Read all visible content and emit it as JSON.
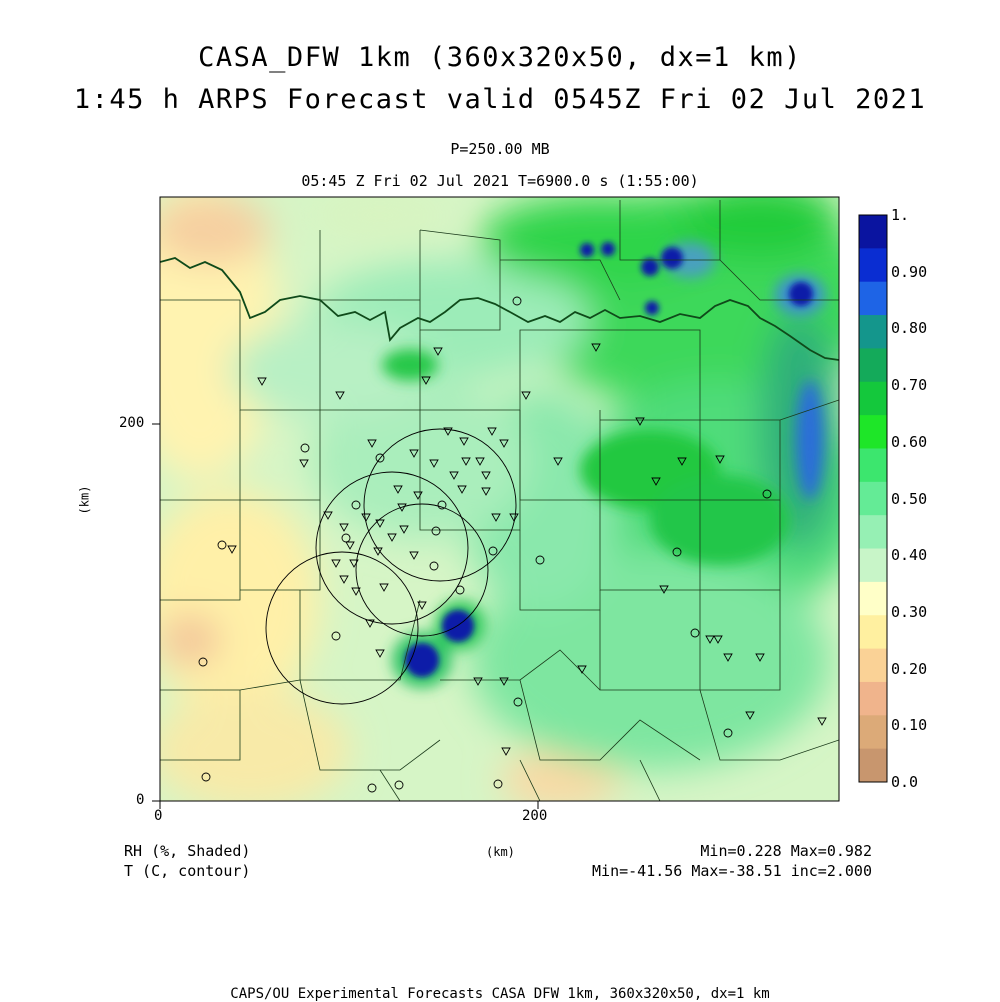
{
  "title": {
    "line1": "CASA_DFW 1km (360x320x50, dx=1 km)",
    "line2": "1:45 h ARPS Forecast valid 0545Z Fri 02 Jul 2021",
    "level": "P=250.00 MB",
    "time": "05:45 Z Fri 02 Jul 2021   T=6900.0 s (1:55:00)"
  },
  "axes": {
    "x_ticks": [
      "0",
      "200"
    ],
    "y_ticks": [
      "0",
      "200"
    ],
    "x_label": "(km)",
    "y_label": "(km)"
  },
  "fields": {
    "shaded": "RH (%, Shaded)",
    "contour": "T (C, contour)",
    "shaded_stats": "Min=0.228 Max=0.982",
    "contour_stats": "Min=-41.56 Max=-38.51 inc=2.000"
  },
  "colorbar": {
    "labels": [
      "1.",
      "0.90",
      "0.80",
      "0.70",
      "0.60",
      "0.50",
      "0.40",
      "0.30",
      "0.20",
      "0.10",
      "0.0"
    ],
    "colors": [
      "#0a14a0",
      "#0a2dd2",
      "#1e64e6",
      "#14968c",
      "#14aa5a",
      "#14c83c",
      "#1ee628",
      "#3ce66e",
      "#64eb96",
      "#96f0b4",
      "#c8f5c8",
      "#ffffc8",
      "#fff0a0",
      "#fad296",
      "#f0b48c",
      "#dcaa78",
      "#c8966e"
    ]
  },
  "footer": "CAPS/OU Experimental Forecasts  CASA DFW 1km, 360x320x50, dx=1 km"
}
